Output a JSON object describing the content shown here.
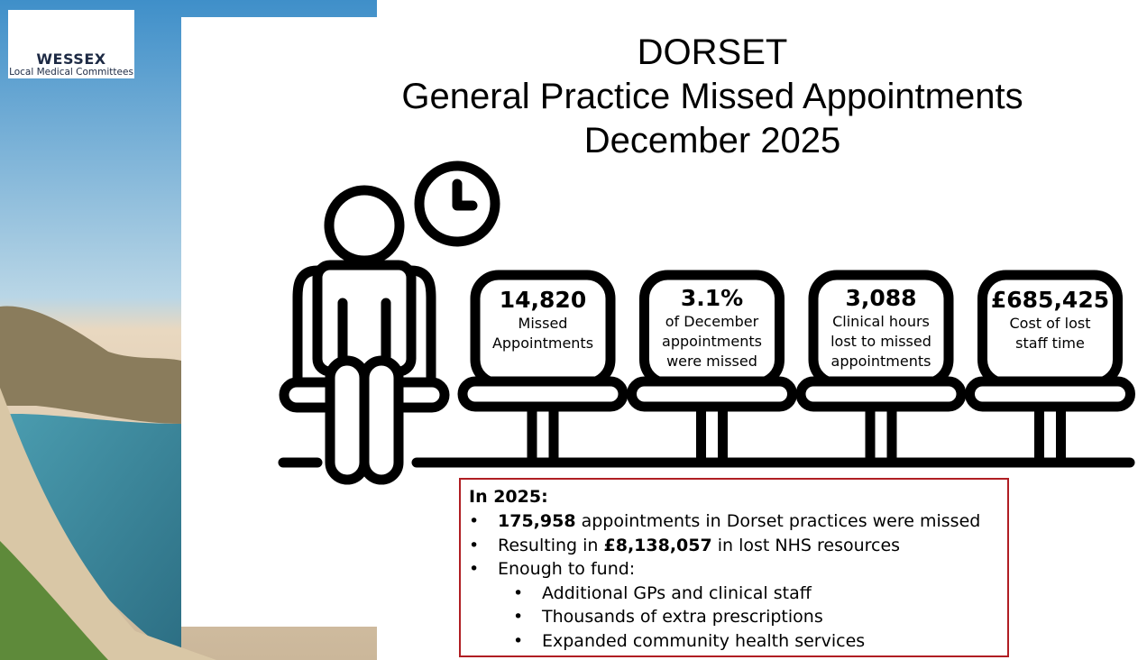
{
  "logo": {
    "name": "WESSEX",
    "subtitle": "Local Medical Committees"
  },
  "header": {
    "title_lines": [
      "DORSET",
      "General Practice Missed Appointments",
      "December 2025"
    ]
  },
  "stats": [
    {
      "value": "14,820",
      "lines": [
        "Missed",
        "Appointments"
      ]
    },
    {
      "value": "3.1%",
      "lines": [
        "of December",
        "appointments",
        "were missed"
      ]
    },
    {
      "value": "3,088",
      "lines": [
        "Clinical hours",
        "lost to missed",
        "appointments"
      ]
    },
    {
      "value": "£685,425",
      "lines": [
        "Cost of lost",
        "staff time"
      ]
    }
  ],
  "summary": {
    "heading": "In 2025:",
    "items": [
      {
        "parts": [
          {
            "text": "175,958",
            "bold": true
          },
          {
            "text": " appointments in Dorset practices were missed"
          }
        ]
      },
      {
        "parts": [
          {
            "text": "Resulting in "
          },
          {
            "text": "£8,138,057",
            "bold": true
          },
          {
            "text": " in lost NHS resources"
          }
        ]
      },
      {
        "parts": [
          {
            "text": "Enough to fund:"
          }
        ],
        "subitems": [
          "Additional GPs and clinical staff",
          "Thousands of extra prescriptions",
          "Expanded community health services"
        ]
      }
    ]
  }
}
